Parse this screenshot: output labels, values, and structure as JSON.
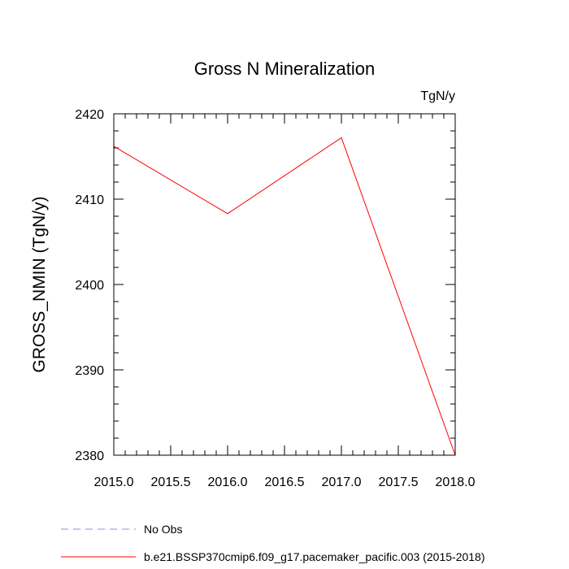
{
  "chart_data": {
    "type": "line",
    "title": "Gross N Mineralization",
    "units_label": "TgN/y",
    "xlabel": "",
    "ylabel": "GROSS_NMIN  (TgN/y)",
    "xlim": [
      2015.0,
      2018.0
    ],
    "ylim": [
      2380,
      2420
    ],
    "x_ticks": [
      "2015.0",
      "2015.5",
      "2016.0",
      "2016.5",
      "2017.0",
      "2017.5",
      "2018.0"
    ],
    "x_tick_values": [
      2015.0,
      2015.5,
      2016.0,
      2016.5,
      2017.0,
      2017.5,
      2018.0
    ],
    "y_ticks": [
      "2380",
      "2390",
      "2400",
      "2410",
      "2420"
    ],
    "y_tick_values": [
      2380,
      2390,
      2400,
      2410,
      2420
    ],
    "series": [
      {
        "name": "b.e21.BSSP370cmip6.f09_g17.pacemaker_pacific.003 (2015-2018)",
        "color": "#ff0000",
        "style": "solid",
        "x": [
          2015,
          2016,
          2017,
          2018
        ],
        "values": [
          2416.2,
          2408.3,
          2417.2,
          2380.0
        ]
      }
    ],
    "legend": [
      {
        "label": "No Obs",
        "color": "#8888ff",
        "style": "dashed"
      },
      {
        "label": "b.e21.BSSP370cmip6.f09_g17.pacemaker_pacific.003 (2015-2018)",
        "color": "#ff0000",
        "style": "solid"
      }
    ]
  }
}
